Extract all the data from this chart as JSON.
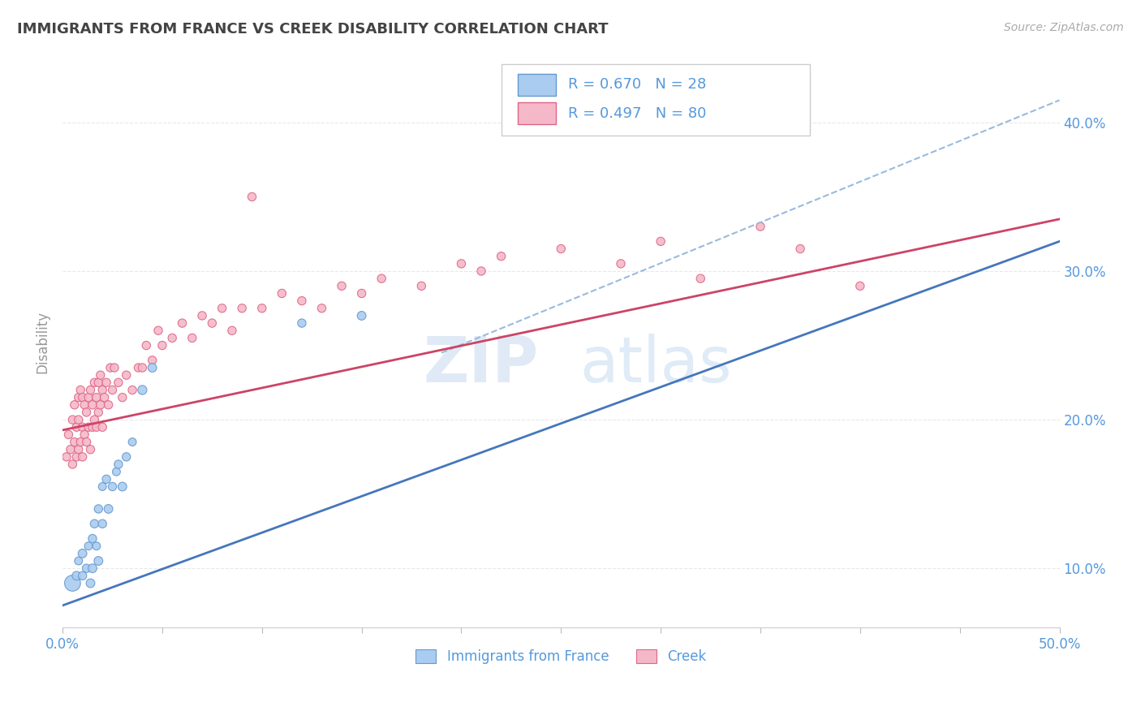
{
  "title": "IMMIGRANTS FROM FRANCE VS CREEK DISABILITY CORRELATION CHART",
  "source_text": "Source: ZipAtlas.com",
  "ylabel": "Disability",
  "xlim": [
    0.0,
    0.5
  ],
  "ylim": [
    0.06,
    0.445
  ],
  "ytick_labels": [
    "10.0%",
    "20.0%",
    "30.0%",
    "40.0%"
  ],
  "ytick_values": [
    0.1,
    0.2,
    0.3,
    0.4
  ],
  "xtick_values": [
    0.0,
    0.05,
    0.1,
    0.15,
    0.2,
    0.25,
    0.3,
    0.35,
    0.4,
    0.45,
    0.5
  ],
  "blue_R": 0.67,
  "blue_N": 28,
  "pink_R": 0.497,
  "pink_N": 80,
  "blue_color": "#aaccf0",
  "pink_color": "#f5b8c8",
  "blue_edge_color": "#6699cc",
  "pink_edge_color": "#dd6688",
  "blue_line_color": "#4477bb",
  "pink_line_color": "#cc4466",
  "dashed_line_color": "#99bbdd",
  "legend_label_blue": "Immigrants from France",
  "legend_label_pink": "Creek",
  "blue_scatter_x": [
    0.005,
    0.007,
    0.008,
    0.01,
    0.01,
    0.012,
    0.013,
    0.014,
    0.015,
    0.015,
    0.016,
    0.017,
    0.018,
    0.018,
    0.02,
    0.02,
    0.022,
    0.023,
    0.025,
    0.027,
    0.028,
    0.03,
    0.032,
    0.035,
    0.04,
    0.045,
    0.12,
    0.15
  ],
  "blue_scatter_y": [
    0.09,
    0.095,
    0.105,
    0.095,
    0.11,
    0.1,
    0.115,
    0.09,
    0.12,
    0.1,
    0.13,
    0.115,
    0.14,
    0.105,
    0.13,
    0.155,
    0.16,
    0.14,
    0.155,
    0.165,
    0.17,
    0.155,
    0.175,
    0.185,
    0.22,
    0.235,
    0.265,
    0.27
  ],
  "blue_scatter_size": [
    200,
    60,
    50,
    55,
    60,
    55,
    50,
    60,
    55,
    60,
    55,
    50,
    55,
    60,
    55,
    50,
    55,
    60,
    55,
    50,
    55,
    60,
    55,
    50,
    65,
    60,
    55,
    60
  ],
  "pink_scatter_x": [
    0.002,
    0.003,
    0.004,
    0.005,
    0.005,
    0.006,
    0.006,
    0.007,
    0.007,
    0.008,
    0.008,
    0.008,
    0.009,
    0.009,
    0.01,
    0.01,
    0.01,
    0.011,
    0.011,
    0.012,
    0.012,
    0.013,
    0.013,
    0.014,
    0.014,
    0.015,
    0.015,
    0.016,
    0.016,
    0.017,
    0.017,
    0.018,
    0.018,
    0.019,
    0.019,
    0.02,
    0.02,
    0.021,
    0.022,
    0.023,
    0.024,
    0.025,
    0.026,
    0.028,
    0.03,
    0.032,
    0.035,
    0.038,
    0.04,
    0.042,
    0.045,
    0.048,
    0.05,
    0.055,
    0.06,
    0.065,
    0.07,
    0.075,
    0.08,
    0.085,
    0.09,
    0.095,
    0.1,
    0.11,
    0.12,
    0.13,
    0.14,
    0.15,
    0.16,
    0.18,
    0.2,
    0.21,
    0.22,
    0.25,
    0.28,
    0.3,
    0.32,
    0.35,
    0.37,
    0.4
  ],
  "pink_scatter_y": [
    0.175,
    0.19,
    0.18,
    0.17,
    0.2,
    0.185,
    0.21,
    0.175,
    0.195,
    0.18,
    0.2,
    0.215,
    0.185,
    0.22,
    0.175,
    0.195,
    0.215,
    0.19,
    0.21,
    0.185,
    0.205,
    0.195,
    0.215,
    0.18,
    0.22,
    0.195,
    0.21,
    0.2,
    0.225,
    0.195,
    0.215,
    0.205,
    0.225,
    0.21,
    0.23,
    0.195,
    0.22,
    0.215,
    0.225,
    0.21,
    0.235,
    0.22,
    0.235,
    0.225,
    0.215,
    0.23,
    0.22,
    0.235,
    0.235,
    0.25,
    0.24,
    0.26,
    0.25,
    0.255,
    0.265,
    0.255,
    0.27,
    0.265,
    0.275,
    0.26,
    0.275,
    0.35,
    0.275,
    0.285,
    0.28,
    0.275,
    0.29,
    0.285,
    0.295,
    0.29,
    0.305,
    0.3,
    0.31,
    0.315,
    0.305,
    0.32,
    0.295,
    0.33,
    0.315,
    0.29
  ],
  "pink_scatter_size": [
    55,
    55,
    55,
    55,
    55,
    55,
    55,
    55,
    55,
    55,
    55,
    55,
    55,
    55,
    55,
    55,
    55,
    55,
    55,
    55,
    55,
    55,
    55,
    55,
    55,
    55,
    55,
    55,
    55,
    55,
    55,
    55,
    55,
    55,
    55,
    55,
    55,
    55,
    55,
    55,
    55,
    55,
    55,
    55,
    55,
    55,
    55,
    55,
    55,
    55,
    55,
    55,
    55,
    55,
    55,
    55,
    55,
    55,
    55,
    55,
    55,
    55,
    55,
    55,
    55,
    55,
    55,
    55,
    55,
    55,
    55,
    55,
    55,
    55,
    55,
    55,
    55,
    55,
    55,
    55
  ],
  "blue_line_x": [
    0.0,
    0.5
  ],
  "blue_line_y_start": 0.075,
  "blue_line_y_end": 0.32,
  "pink_line_x": [
    0.0,
    0.5
  ],
  "pink_line_y_start": 0.193,
  "pink_line_y_end": 0.335,
  "dashed_line_x": [
    0.19,
    0.5
  ],
  "dashed_line_y_start": 0.245,
  "dashed_line_y_end": 0.415,
  "background_color": "#ffffff",
  "grid_color": "#e8e8e8",
  "axis_label_color": "#5599dd",
  "title_color": "#444444"
}
